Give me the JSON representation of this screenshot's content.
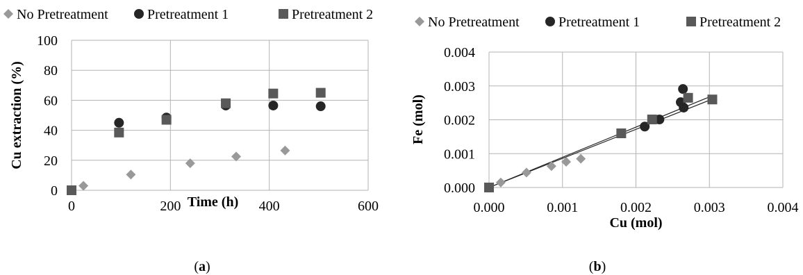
{
  "legend": [
    "No Pretreatment",
    "Pretreatment 1",
    "Pretreatment 2"
  ],
  "colors": {
    "no_pretreatment": "#999999",
    "pretreatment_1": "#262626",
    "pretreatment_2": "#595959",
    "grid": "#b3b3b3",
    "line": "#262626"
  },
  "markers": {
    "no_pretreatment": "diamond",
    "pretreatment_1": "circle",
    "pretreatment_2": "square"
  },
  "panels": {
    "a": {
      "label": "a"
    },
    "b": {
      "label": "b"
    }
  },
  "chart_data": [
    {
      "type": "scatter",
      "xlabel": "Time (h)",
      "ylabel": "Cu extraction (%)",
      "xlim": [
        0,
        600
      ],
      "ylim": [
        0,
        100
      ],
      "xticks": [
        0,
        200,
        400,
        600
      ],
      "yticks": [
        0,
        20,
        40,
        60,
        80,
        100
      ],
      "xtick_labels": [
        "0",
        "200",
        "400",
        "600"
      ],
      "ytick_labels": [
        "0",
        "20",
        "40",
        "60",
        "80",
        "100"
      ],
      "grid": true,
      "legend_position": "top",
      "series": [
        {
          "name": "No Pretreatment",
          "points": [
            [
              0,
              0
            ],
            [
              24,
              3
            ],
            [
              120,
              10.5
            ],
            [
              240,
              18
            ],
            [
              333,
              22.5
            ],
            [
              432,
              26.5
            ]
          ]
        },
        {
          "name": "Pretreatment 1",
          "points": [
            [
              0,
              0
            ],
            [
              96,
              45
            ],
            [
              192,
              48.5
            ],
            [
              312,
              56.5
            ],
            [
              408,
              56.5
            ],
            [
              504,
              56
            ]
          ]
        },
        {
          "name": "Pretreatment 2",
          "points": [
            [
              0,
              0
            ],
            [
              96,
              38.5
            ],
            [
              192,
              47
            ],
            [
              312,
              58
            ],
            [
              408,
              64.5
            ],
            [
              504,
              65
            ]
          ]
        }
      ]
    },
    {
      "type": "scatter",
      "xlabel": "Cu (mol)",
      "ylabel": "Fe (mol)",
      "xlim": [
        0,
        0.004
      ],
      "ylim": [
        0,
        0.004
      ],
      "xticks": [
        0,
        0.001,
        0.002,
        0.003,
        0.004
      ],
      "yticks": [
        0,
        0.001,
        0.002,
        0.003,
        0.004
      ],
      "xtick_labels": [
        "0.000",
        "0.001",
        "0.002",
        "0.003",
        "0.004"
      ],
      "ytick_labels": [
        "0.000",
        "0.001",
        "0.002",
        "0.003",
        "0.004"
      ],
      "grid": true,
      "legend_position": "top",
      "series": [
        {
          "name": "No Pretreatment",
          "points": [
            [
              0,
              0
            ],
            [
              0.00016,
              0.00015
            ],
            [
              0.00051,
              0.00044
            ],
            [
              0.00085,
              0.00063
            ],
            [
              0.00105,
              0.00076
            ],
            [
              0.00125,
              0.00085
            ]
          ]
        },
        {
          "name": "Pretreatment 1",
          "points": [
            [
              0,
              0
            ],
            [
              0.00212,
              0.0018
            ],
            [
              0.00232,
              0.00201
            ],
            [
              0.00261,
              0.00252
            ],
            [
              0.00264,
              0.00291
            ],
            [
              0.00265,
              0.00236
            ]
          ]
        },
        {
          "name": "Pretreatment 2",
          "points": [
            [
              0,
              0
            ],
            [
              0.0018,
              0.0016
            ],
            [
              0.00222,
              0.00201
            ],
            [
              0.00271,
              0.00265
            ],
            [
              0.00304,
              0.0026
            ]
          ]
        }
      ],
      "trendlines": [
        {
          "series": "Pretreatment 1",
          "from": [
            0,
            0
          ],
          "to": [
            0.00305,
            0.00272
          ]
        },
        {
          "series": "Pretreatment 2",
          "from": [
            0,
            0
          ],
          "to": [
            0.00305,
            0.00262
          ]
        }
      ]
    }
  ]
}
